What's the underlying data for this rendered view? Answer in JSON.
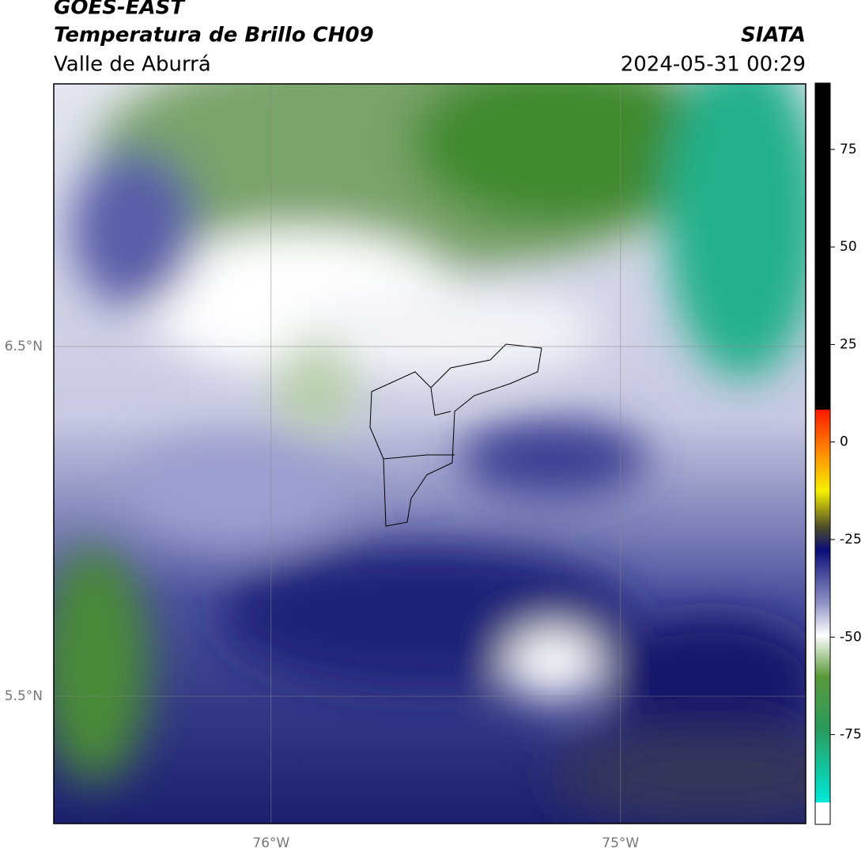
{
  "header": {
    "title": "GOES-EAST",
    "subtitle": "Temperatura de Brillo CH09",
    "region": "Valle de Aburrá",
    "source": "SIATA",
    "timestamp": "2024-05-31 00:29"
  },
  "map": {
    "xlim": [
      -76.622,
      -74.47
    ],
    "ylim": [
      5.136,
      7.251
    ],
    "xticks": [
      {
        "value": -76,
        "label": "76°W"
      },
      {
        "value": -75,
        "label": "75°W"
      }
    ],
    "yticks": [
      {
        "value": 6.5,
        "label": "6.5°N"
      },
      {
        "value": 5.5,
        "label": "5.5°N"
      }
    ]
  },
  "colorbar": {
    "lim": [
      -98,
      92
    ],
    "ticks": [
      75,
      50,
      25,
      0,
      -25,
      -50,
      -75
    ]
  }
}
